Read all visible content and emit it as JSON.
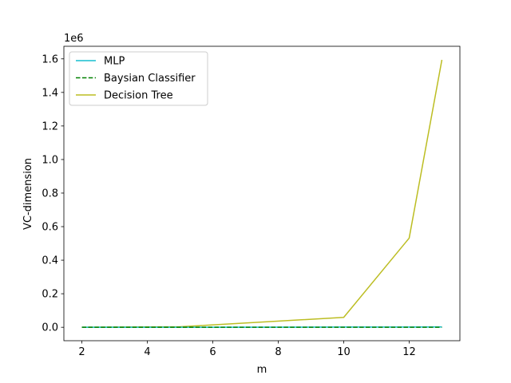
{
  "chart_data": {
    "type": "line",
    "xlabel": "m",
    "ylabel": "VC-dimension",
    "y_multiplier_label": "1e6",
    "xlim": [
      1.45,
      13.55
    ],
    "ylim": [
      -80000,
      1675000
    ],
    "x_ticks": [
      2,
      4,
      6,
      8,
      10,
      12
    ],
    "x_tick_labels": [
      "2",
      "4",
      "6",
      "8",
      "10",
      "12"
    ],
    "y_ticks": [
      0,
      200000,
      400000,
      600000,
      800000,
      1000000,
      1200000,
      1400000,
      1600000
    ],
    "y_tick_labels": [
      "0.0",
      "0.2",
      "0.4",
      "0.6",
      "0.8",
      "1.0",
      "1.2",
      "1.4",
      "1.6"
    ],
    "grid": false,
    "legend_position": "upper-left",
    "series": [
      {
        "name": "MLP",
        "color": "#17becf",
        "linestyle": "solid",
        "x": [
          2,
          5,
          10,
          12,
          13
        ],
        "y": [
          100,
          400,
          1200,
          1600,
          1800
        ]
      },
      {
        "name": "Baysian Classifier",
        "color": "#008000",
        "linestyle": "dashed",
        "x": [
          2,
          5,
          10,
          12,
          13
        ],
        "y": [
          5,
          11,
          21,
          25,
          27
        ]
      },
      {
        "name": "Decision Tree",
        "color": "#bcbd22",
        "linestyle": "solid",
        "x": [
          2,
          5,
          10,
          12,
          13
        ],
        "y": [
          16,
          3125,
          59000,
          531441,
          1594323
        ]
      }
    ]
  }
}
